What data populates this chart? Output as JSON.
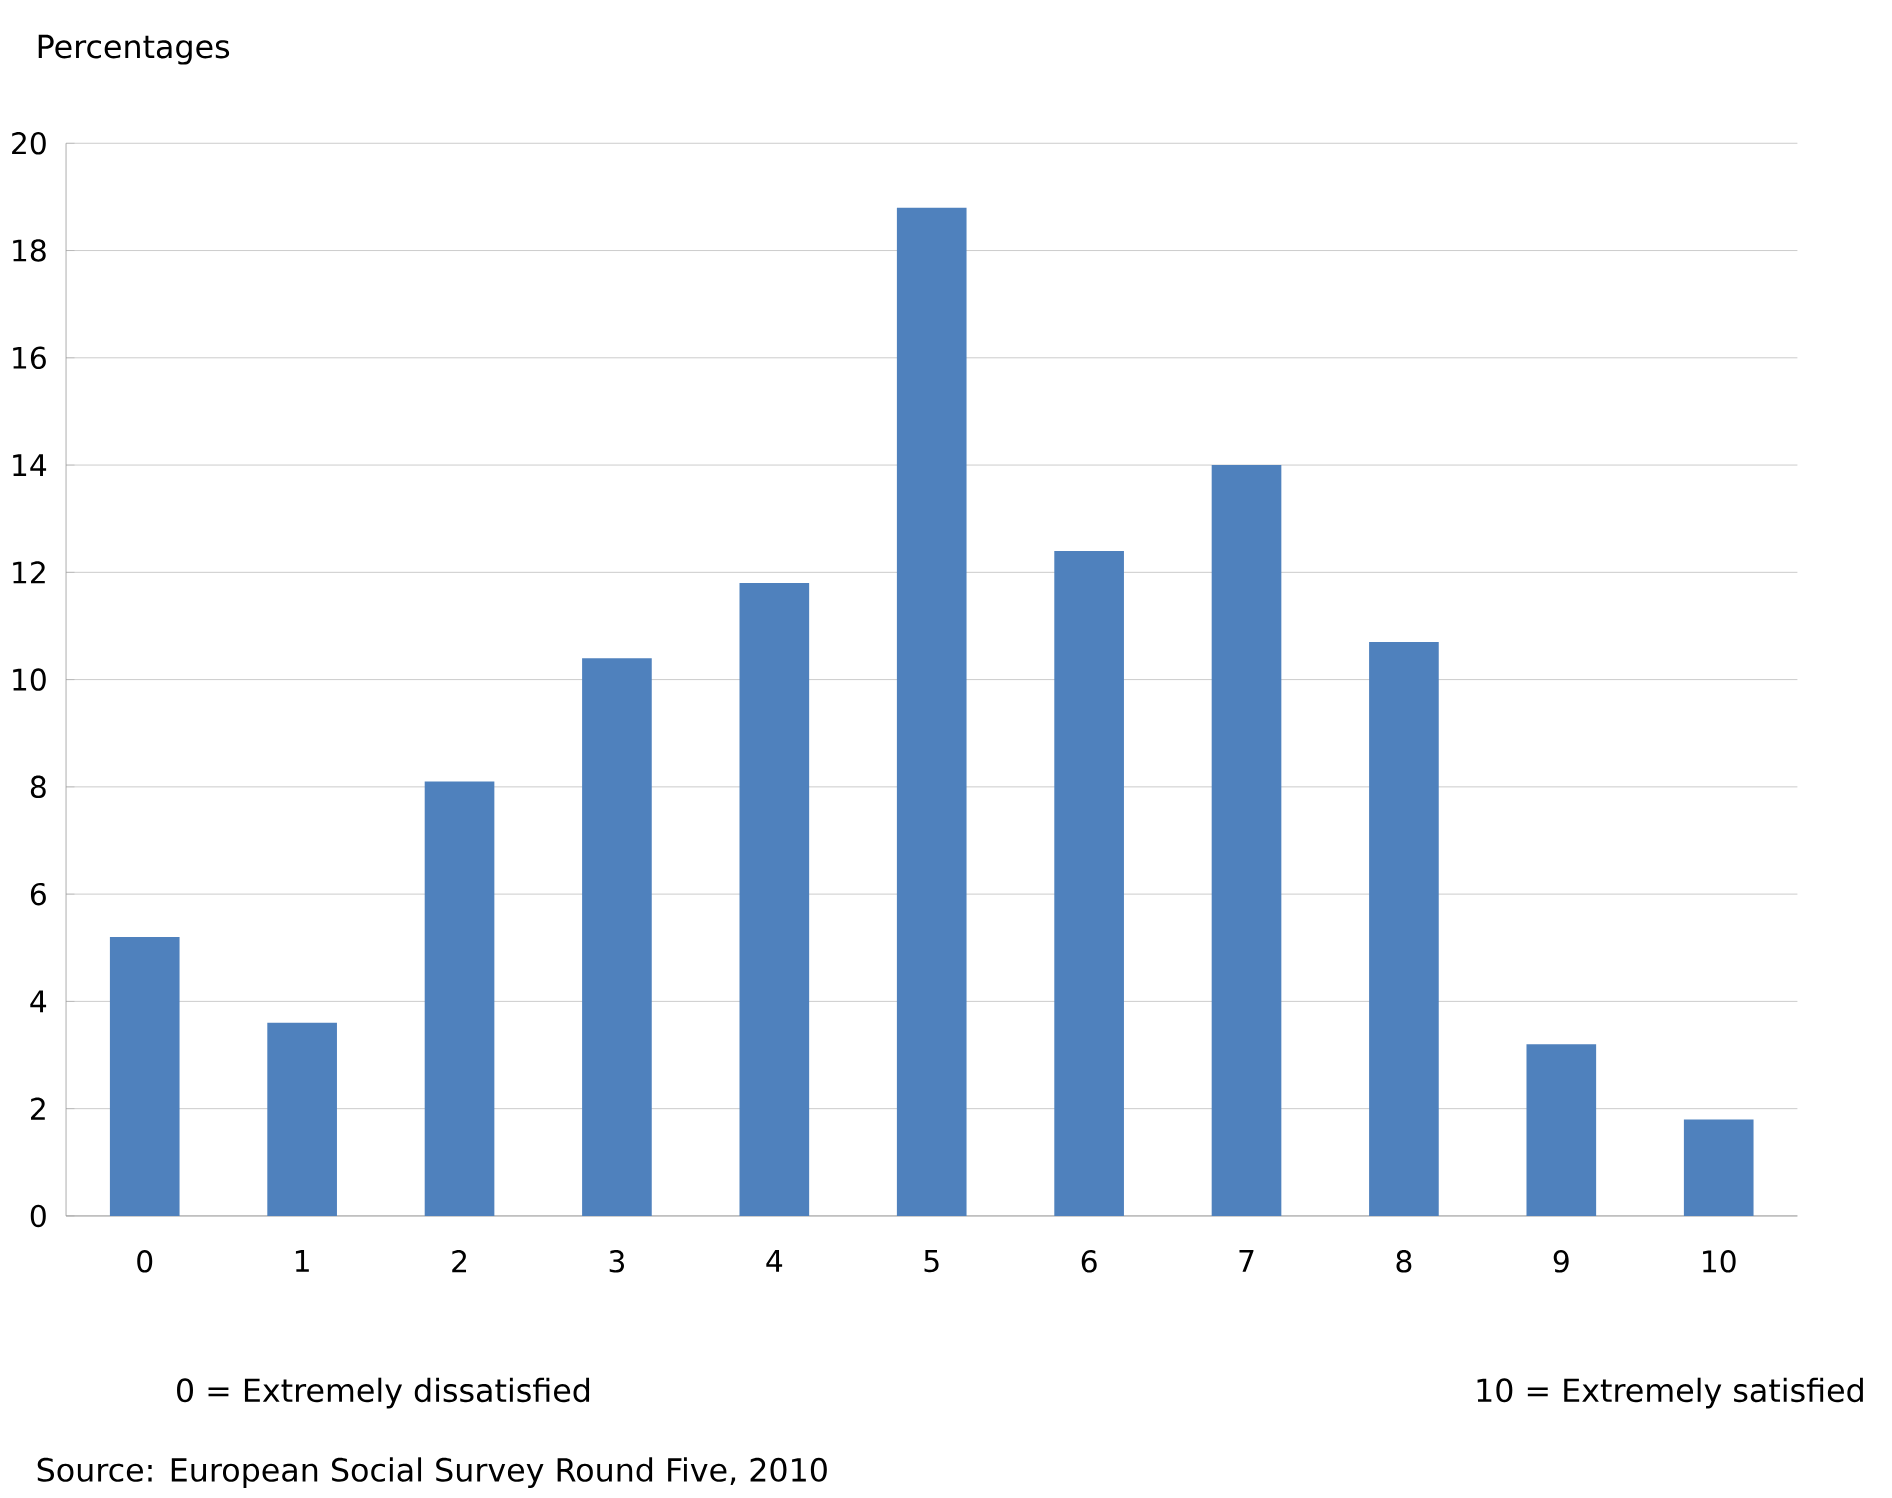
{
  "chart_data": {
    "type": "bar",
    "ylabel": "Percentages",
    "categories": [
      "0",
      "1",
      "2",
      "3",
      "4",
      "5",
      "6",
      "7",
      "8",
      "9",
      "10"
    ],
    "values": [
      5.2,
      3.6,
      8.1,
      10.4,
      11.8,
      18.8,
      12.4,
      14.0,
      10.7,
      3.2,
      1.8
    ],
    "color": "#4f81bd",
    "ylim": [
      0,
      20
    ],
    "yticks": [
      0,
      2,
      4,
      6,
      8,
      10,
      12,
      14,
      16,
      18,
      20
    ],
    "grid": "y",
    "annotations": [
      "0 = Extremely dissatisfied",
      "10 = Extremely satisfied",
      "Source: European Social Survey Round Five, 2010"
    ]
  }
}
